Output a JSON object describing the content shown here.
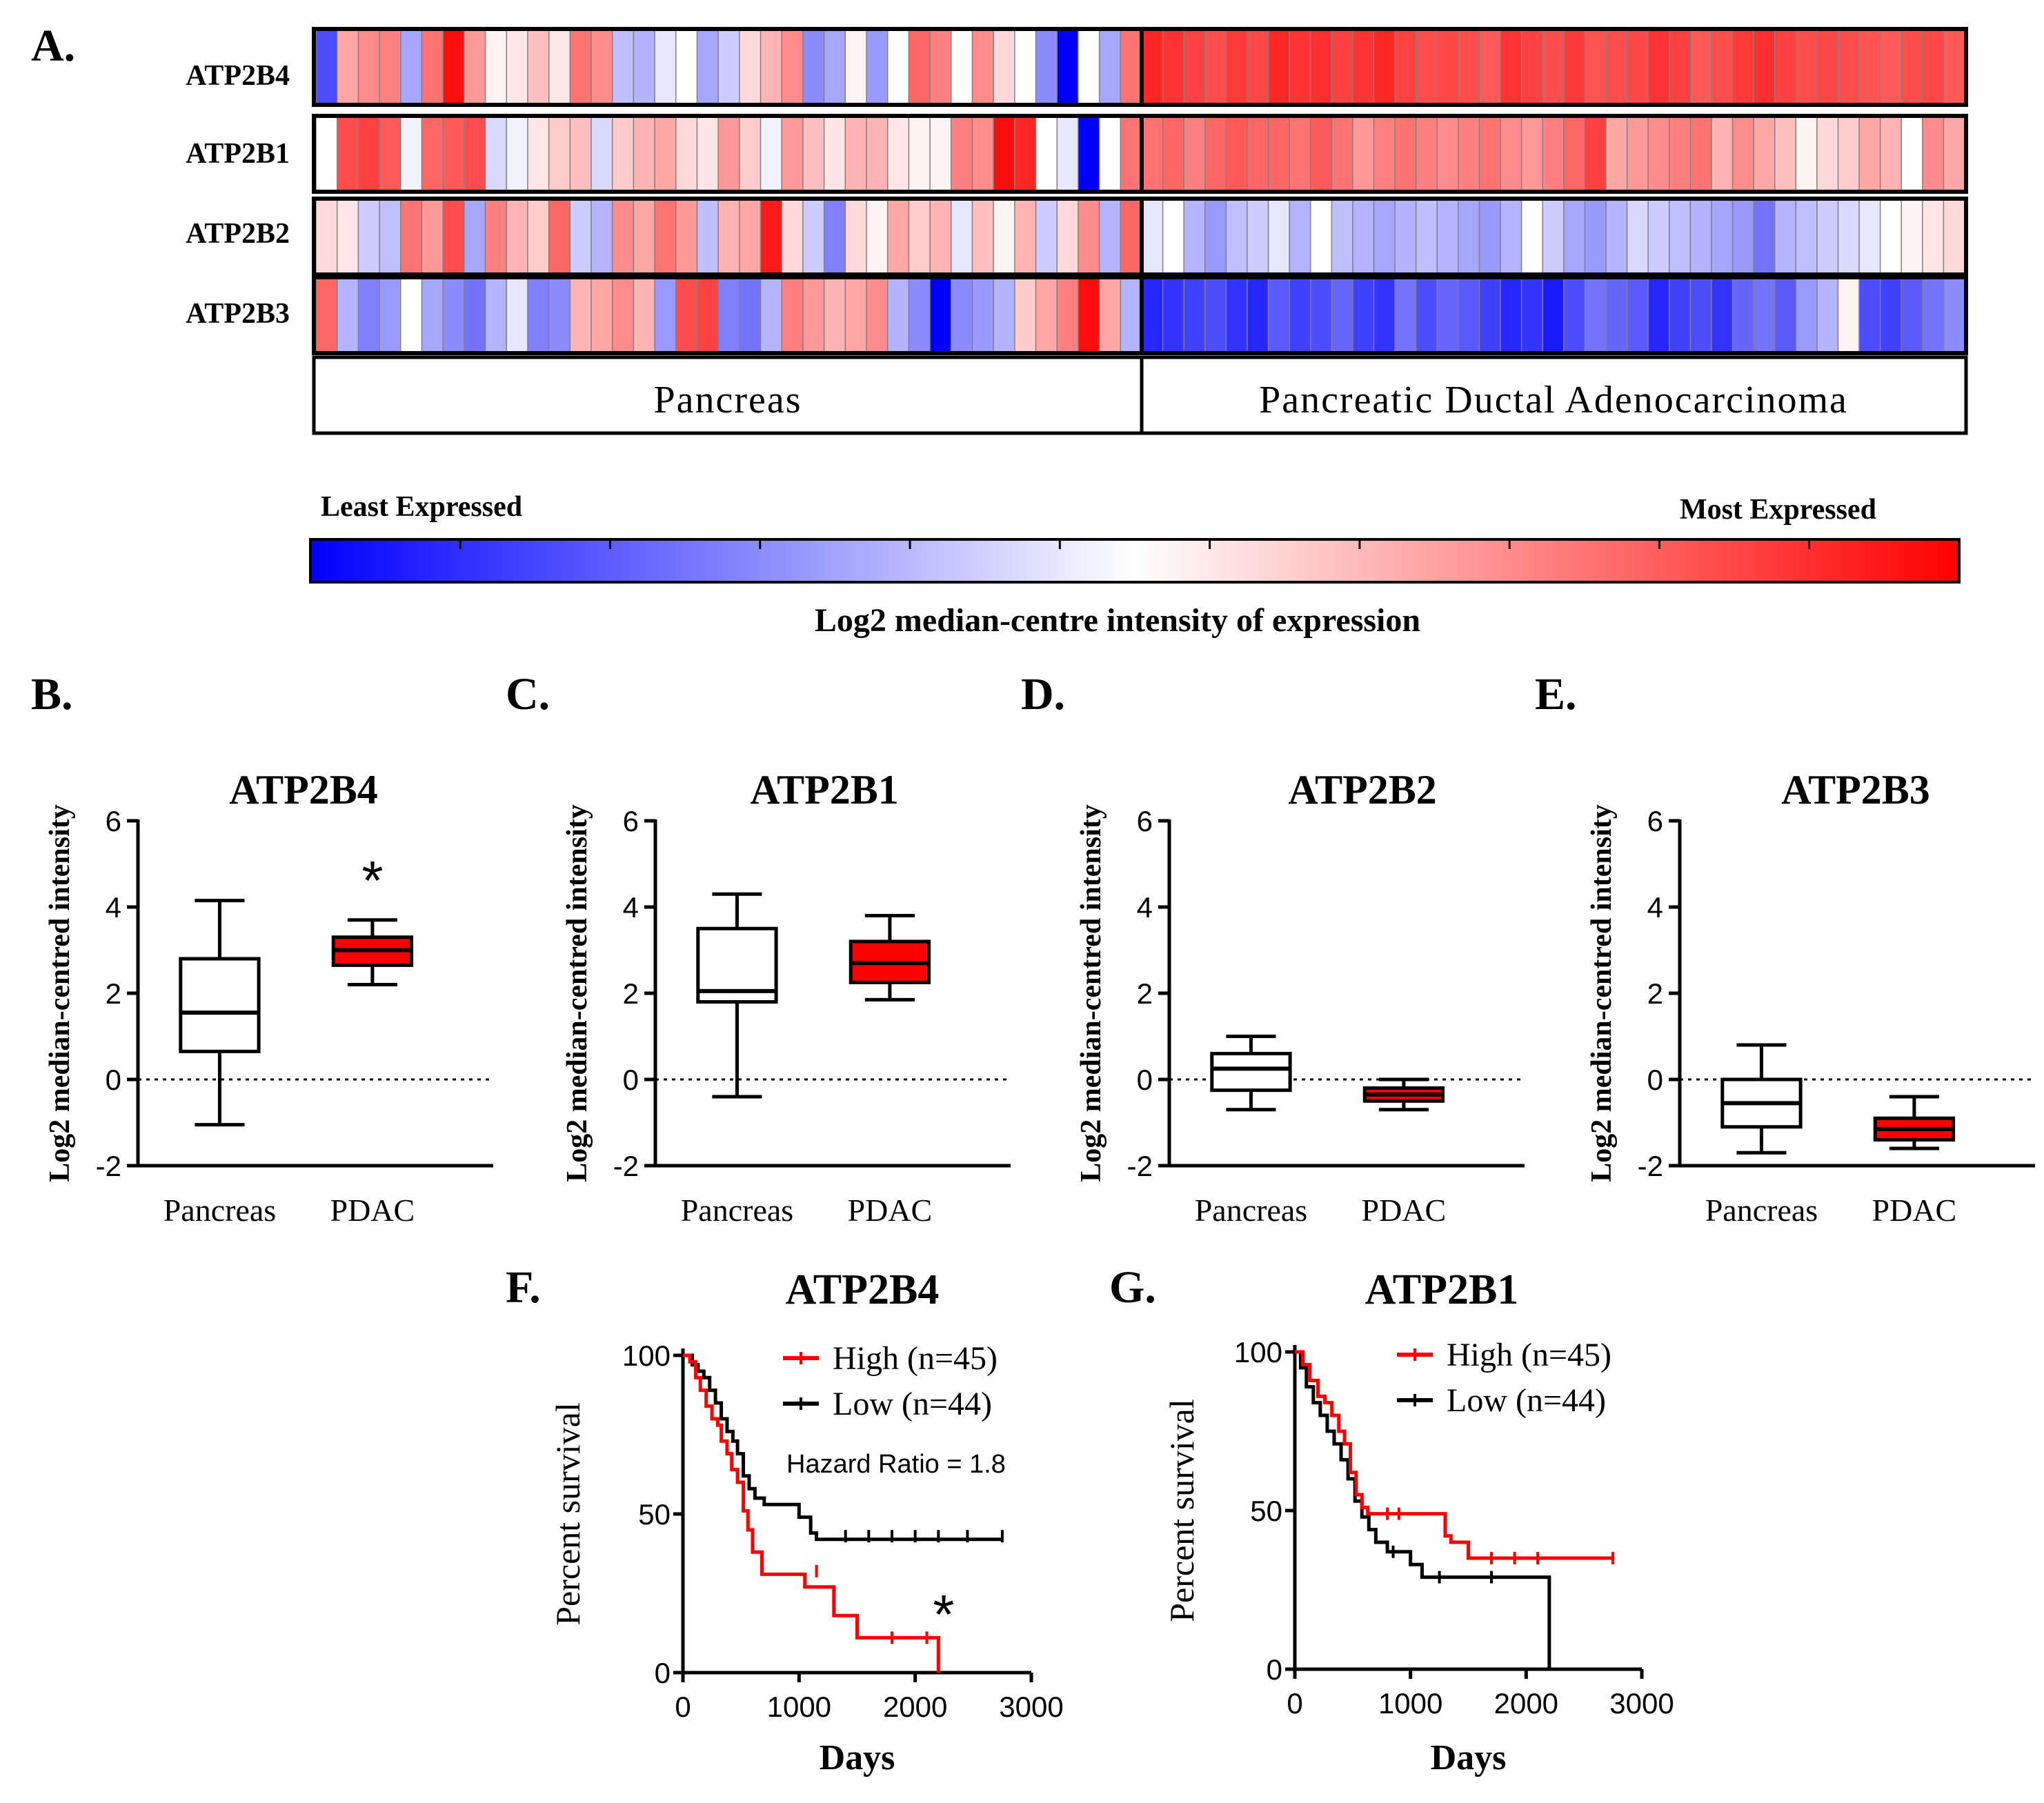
{
  "chart_data": [
    {
      "panel": "A.",
      "type": "heatmap",
      "rows": [
        "ATP2B4",
        "ATP2B1",
        "ATP2B2",
        "ATP2B3"
      ],
      "groups": [
        "Pancreas",
        "Pancreatic Ductal Adenocarcinoma"
      ],
      "samples_per_group": [
        39,
        39
      ],
      "values": [
        [
          -0.7,
          0.35,
          0.45,
          0.5,
          -0.35,
          0.55,
          0.95,
          0.4,
          0.05,
          0.1,
          0.25,
          0.1,
          0.55,
          0.45,
          -0.25,
          -0.3,
          -0.1,
          0.0,
          -0.35,
          -0.2,
          0.15,
          0.3,
          0.45,
          -0.45,
          -0.35,
          0.05,
          -0.4,
          0.0,
          0.6,
          0.5,
          0.0,
          0.45,
          0.15,
          0.0,
          -0.45,
          -1.0,
          0.0,
          -0.35,
          0.55,
          0.85,
          0.8,
          0.75,
          0.7,
          0.78,
          0.72,
          0.85,
          0.8,
          0.82,
          0.75,
          0.8,
          0.85,
          0.75,
          0.7,
          0.72,
          0.7,
          0.65,
          0.8,
          0.75,
          0.7,
          0.78,
          0.68,
          0.7,
          0.72,
          0.8,
          0.75,
          0.65,
          0.7,
          0.78,
          0.82,
          0.75,
          0.7,
          0.72,
          0.7,
          0.68,
          0.65,
          0.7,
          0.72,
          0.65
        ],
        [
          0.0,
          0.7,
          0.75,
          0.65,
          -0.05,
          0.6,
          0.65,
          0.7,
          -0.15,
          -0.05,
          0.1,
          0.2,
          0.25,
          -0.15,
          0.2,
          0.3,
          0.35,
          0.15,
          0.1,
          0.4,
          0.2,
          -0.05,
          0.4,
          0.25,
          0.1,
          0.3,
          0.3,
          0.1,
          0.05,
          0.05,
          0.5,
          0.45,
          0.95,
          0.85,
          0.0,
          -0.1,
          -1.0,
          0.0,
          0.55,
          0.55,
          0.6,
          0.5,
          0.6,
          0.65,
          0.6,
          0.6,
          0.55,
          0.65,
          0.55,
          0.4,
          0.5,
          0.55,
          0.5,
          0.45,
          0.5,
          0.55,
          0.45,
          0.4,
          0.5,
          0.6,
          0.75,
          0.35,
          0.4,
          0.45,
          0.5,
          0.55,
          0.3,
          0.45,
          0.35,
          0.25,
          0.05,
          0.15,
          0.2,
          0.35,
          0.3,
          0.0,
          0.45,
          0.35,
          0.3
        ],
        [
          0.15,
          0.1,
          -0.2,
          -0.25,
          0.55,
          0.4,
          0.7,
          -0.35,
          0.5,
          0.3,
          0.2,
          0.6,
          -0.2,
          -0.3,
          0.45,
          0.35,
          0.55,
          0.4,
          -0.25,
          0.3,
          0.35,
          0.9,
          0.15,
          -0.2,
          -0.5,
          0.15,
          0.05,
          0.35,
          0.2,
          0.3,
          -0.1,
          0.25,
          0.05,
          0.3,
          -0.2,
          0.15,
          0.45,
          -0.3,
          0.6,
          -0.1,
          0.0,
          -0.3,
          -0.4,
          -0.25,
          -0.2,
          -0.1,
          -0.3,
          0.0,
          -0.25,
          -0.3,
          -0.35,
          -0.3,
          -0.25,
          -0.3,
          -0.35,
          -0.4,
          -0.3,
          0.0,
          -0.2,
          -0.35,
          -0.4,
          -0.3,
          -0.15,
          -0.2,
          -0.25,
          -0.3,
          -0.35,
          -0.4,
          -0.55,
          -0.3,
          -0.25,
          -0.2,
          -0.15,
          -0.1,
          0.0,
          0.05,
          0.1,
          0.15,
          0.2
        ],
        [
          0.6,
          -0.3,
          -0.5,
          -0.4,
          0.0,
          -0.35,
          -0.45,
          -0.55,
          -0.3,
          -0.1,
          -0.5,
          -0.45,
          0.3,
          0.35,
          0.45,
          0.3,
          -0.4,
          0.7,
          0.75,
          -0.5,
          -0.55,
          -0.3,
          0.5,
          0.4,
          0.3,
          0.35,
          0.45,
          -0.3,
          -0.45,
          -1.0,
          -0.45,
          -0.4,
          -0.3,
          0.2,
          0.35,
          0.5,
          0.95,
          0.35,
          -0.3,
          -0.85,
          -0.8,
          -0.75,
          -0.7,
          -0.8,
          -0.85,
          -0.65,
          -0.75,
          -0.7,
          -0.6,
          -0.75,
          -0.8,
          -0.55,
          -0.7,
          -0.6,
          -0.65,
          -0.75,
          -0.85,
          -0.8,
          -0.9,
          -0.7,
          -0.55,
          -0.6,
          -0.65,
          -0.85,
          -0.75,
          -0.7,
          -0.8,
          -0.6,
          -0.55,
          -0.65,
          -0.4,
          -0.3,
          0.05,
          -0.7,
          -0.75,
          -0.65,
          -0.55,
          -0.45,
          -0.35
        ]
      ],
      "legend": {
        "low_label": "Least Expressed",
        "high_label": "Most Expressed",
        "title": "Log2 median-centre intensity of expression"
      },
      "colors": {
        "low": "#0000ff",
        "mid": "#ffffff",
        "high": "#ff0000"
      }
    },
    {
      "panel": "B.",
      "type": "box",
      "title": "ATP2B4",
      "ylabel": "Log2 median-centred intensity",
      "ylim": [
        -2,
        6
      ],
      "yticks": [
        "-2",
        "0",
        "2",
        "4",
        "6"
      ],
      "categories": [
        "Pancreas",
        "PDAC"
      ],
      "boxes": [
        {
          "min": -1.05,
          "q1": 0.65,
          "median": 1.55,
          "q3": 2.8,
          "max": 4.15,
          "fill": "#ffffff"
        },
        {
          "min": 2.2,
          "q1": 2.65,
          "median": 3.0,
          "q3": 3.3,
          "max": 3.7,
          "fill": "#ff0000"
        }
      ],
      "annotation": "*"
    },
    {
      "panel": "C.",
      "type": "box",
      "title": "ATP2B1",
      "ylabel": "Log2 median-centred intensity",
      "ylim": [
        -2,
        6
      ],
      "yticks": [
        "-2",
        "0",
        "2",
        "4",
        "6"
      ],
      "categories": [
        "Pancreas",
        "PDAC"
      ],
      "boxes": [
        {
          "min": -0.4,
          "q1": 1.8,
          "median": 2.05,
          "q3": 3.5,
          "max": 4.3,
          "fill": "#ffffff"
        },
        {
          "min": 1.85,
          "q1": 2.25,
          "median": 2.7,
          "q3": 3.2,
          "max": 3.8,
          "fill": "#ff0000"
        }
      ]
    },
    {
      "panel": "D.",
      "type": "box",
      "title": "ATP2B2",
      "ylabel": "Log2 median-centred intensity",
      "ylim": [
        -2,
        6
      ],
      "yticks": [
        "-2",
        "0",
        "2",
        "4",
        "6"
      ],
      "categories": [
        "Pancreas",
        "PDAC"
      ],
      "boxes": [
        {
          "min": -0.7,
          "q1": -0.25,
          "median": 0.25,
          "q3": 0.6,
          "max": 1.0,
          "fill": "#ffffff"
        },
        {
          "min": -0.7,
          "q1": -0.5,
          "median": -0.35,
          "q3": -0.2,
          "max": 0.0,
          "fill": "#ff0000"
        }
      ]
    },
    {
      "panel": "E.",
      "type": "box",
      "title": "ATP2B3",
      "ylabel": "Log2 median-centred intensity",
      "ylim": [
        -2,
        6
      ],
      "yticks": [
        "-2",
        "0",
        "2",
        "4",
        "6"
      ],
      "categories": [
        "Pancreas",
        "PDAC"
      ],
      "boxes": [
        {
          "min": -1.7,
          "q1": -1.1,
          "median": -0.55,
          "q3": 0.0,
          "max": 0.8,
          "fill": "#ffffff"
        },
        {
          "min": -1.6,
          "q1": -1.4,
          "median": -1.15,
          "q3": -0.9,
          "max": -0.4,
          "fill": "#ff0000"
        }
      ]
    },
    {
      "panel": "F.",
      "type": "line",
      "title": "ATP2B4",
      "xlabel": "Days",
      "ylabel": "Percent survival",
      "xlim": [
        0,
        3000
      ],
      "ylim": [
        0,
        100
      ],
      "xticks": [
        "0",
        "1000",
        "2000",
        "3000"
      ],
      "yticks": [
        "0",
        "50",
        "100"
      ],
      "series": [
        {
          "name": "High (n=45)",
          "color": "#ff0000",
          "x": [
            0,
            60,
            110,
            150,
            200,
            250,
            300,
            330,
            380,
            420,
            470,
            520,
            560,
            600,
            680,
            1050,
            1300,
            1500,
            2200
          ],
          "y": [
            100,
            98,
            93,
            89,
            84,
            80,
            78,
            73,
            69,
            64,
            60,
            51,
            45,
            38,
            31,
            27,
            18,
            11,
            0
          ],
          "censors": [
            [
              1150,
              32
            ],
            [
              1800,
              11
            ],
            [
              2100,
              11
            ]
          ]
        },
        {
          "name": "Low (n=44)",
          "color": "#000000",
          "x": [
            0,
            80,
            130,
            180,
            230,
            280,
            330,
            380,
            430,
            470,
            520,
            570,
            620,
            700,
            1000,
            1100,
            1150,
            2750
          ],
          "y": [
            100,
            97,
            95,
            93,
            89,
            85,
            80,
            76,
            73,
            69,
            62,
            58,
            55,
            53,
            49,
            44,
            42,
            42
          ],
          "censors": [
            [
              1400,
              43
            ],
            [
              1600,
              43
            ],
            [
              1800,
              43
            ],
            [
              2000,
              43
            ],
            [
              2200,
              43
            ],
            [
              2450,
              43
            ],
            [
              2750,
              43
            ]
          ]
        }
      ],
      "annotations": [
        "Hazard Ratio = 1.8",
        "*"
      ]
    },
    {
      "panel": "G.",
      "type": "line",
      "title": "ATP2B1",
      "xlabel": "Days",
      "ylabel": "Percent survival",
      "xlim": [
        0,
        3000
      ],
      "ylim": [
        0,
        100
      ],
      "xticks": [
        "0",
        "1000",
        "2000",
        "3000"
      ],
      "yticks": [
        "0",
        "50",
        "100"
      ],
      "series": [
        {
          "name": "High (n=45)",
          "color": "#ff0000",
          "x": [
            0,
            70,
            130,
            200,
            260,
            320,
            380,
            430,
            480,
            530,
            580,
            630,
            1050,
            1300,
            1350,
            1500,
            2750
          ],
          "y": [
            100,
            96,
            91,
            86,
            84,
            80,
            75,
            71,
            62,
            55,
            51,
            49,
            49,
            42,
            40,
            35,
            35
          ],
          "censors": [
            [
              800,
              49
            ],
            [
              900,
              49
            ],
            [
              1700,
              35
            ],
            [
              1900,
              35
            ],
            [
              2100,
              35
            ],
            [
              2750,
              35
            ]
          ]
        },
        {
          "name": "Low (n=44)",
          "color": "#000000",
          "x": [
            0,
            50,
            100,
            160,
            220,
            280,
            340,
            400,
            460,
            520,
            580,
            640,
            700,
            800,
            1000,
            1100,
            2150,
            2200
          ],
          "y": [
            100,
            95,
            89,
            84,
            80,
            75,
            71,
            66,
            60,
            53,
            48,
            44,
            40,
            37,
            33,
            29,
            29,
            0
          ],
          "censors": [
            [
              850,
              37
            ],
            [
              1250,
              29
            ],
            [
              1700,
              29
            ]
          ]
        }
      ]
    }
  ]
}
